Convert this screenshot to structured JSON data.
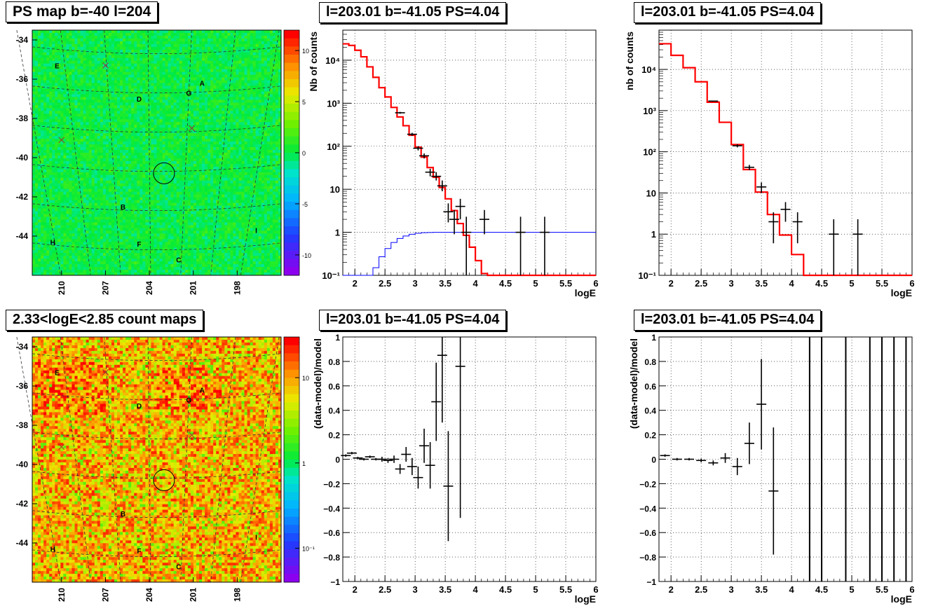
{
  "panels": {
    "map_ps": {
      "title": "PS map b=-40 l=204",
      "y_ticks": [
        "-34",
        "-36",
        "-38",
        "-40",
        "-42",
        "-44"
      ],
      "x_ticks": [
        "210",
        "207",
        "204",
        "201",
        "198"
      ],
      "colorbar_ticks": [
        "10",
        "5",
        "0",
        "-5",
        "-10"
      ],
      "source_labels": [
        {
          "text": "E"
        },
        {
          "text": "A"
        },
        {
          "text": "D"
        },
        {
          "text": "G"
        },
        {
          "text": "B"
        },
        {
          "text": "H"
        },
        {
          "text": "F"
        },
        {
          "text": "C"
        },
        {
          "text": "I"
        }
      ],
      "color_scale": "significance, rainbow, mostly green (~0)"
    },
    "map_counts": {
      "title": "2.33<logE<2.85 count maps",
      "y_ticks": [
        "-34",
        "-36",
        "-38",
        "-40",
        "-42",
        "-44"
      ],
      "x_ticks": [
        "210",
        "207",
        "204",
        "201",
        "198"
      ],
      "colorbar_ticks": [
        "10",
        "1",
        "10⁻¹"
      ],
      "source_labels": [
        {
          "text": "E"
        },
        {
          "text": "A"
        },
        {
          "text": "D"
        },
        {
          "text": "G"
        },
        {
          "text": "B"
        },
        {
          "text": "H"
        },
        {
          "text": "F"
        },
        {
          "text": "C"
        },
        {
          "text": "I"
        }
      ],
      "color_scale": "counts, log, mostly orange/red"
    },
    "spec1": {
      "title": "l=203.01 b=-41.05 PS=4.04",
      "ylabel": "Nb of counts",
      "xlabel": "logE"
    },
    "spec2": {
      "title": "l=203.01 b=-41.05 PS=4.04",
      "ylabel": "nb of counts",
      "xlabel": "logE"
    },
    "res1": {
      "title": "l=203.01 b=-41.05 PS=4.04",
      "ylabel": "(data-model)/model",
      "xlabel": "logE"
    },
    "res2": {
      "title": "l=203.01 b=-41.05 PS=4.04",
      "ylabel": "(data-model)/model",
      "xlabel": "logE"
    }
  },
  "chart_data": [
    {
      "type": "heatmap",
      "title": "PS map b=-40 l=204",
      "xlabel": "",
      "ylabel": "",
      "xlim": [
        212,
        195
      ],
      "ylim": [
        -46,
        -33.5
      ],
      "colorbar": {
        "min": -12,
        "max": 12,
        "scale": "linear"
      },
      "sources": [
        {
          "label": "E",
          "l": 210.3,
          "b": -35.3
        },
        {
          "label": "A",
          "l": 200.4,
          "b": -36.2
        },
        {
          "label": "D",
          "l": 204.7,
          "b": -37.0
        },
        {
          "label": "G",
          "l": 201.3,
          "b": -36.7
        },
        {
          "label": "B",
          "l": 205.8,
          "b": -42.5
        },
        {
          "label": "H",
          "l": 210.6,
          "b": -44.3
        },
        {
          "label": "F",
          "l": 204.7,
          "b": -44.4
        },
        {
          "label": "C",
          "l": 202.0,
          "b": -45.2
        },
        {
          "label": "I",
          "l": 196.7,
          "b": -43.7
        }
      ],
      "crosses": [
        {
          "l": 207.0,
          "b": -35.3
        },
        {
          "l": 201.1,
          "b": -38.5
        },
        {
          "l": 210.0,
          "b": -39.1
        }
      ],
      "circle": {
        "l": 203.0,
        "b": -40.8
      }
    },
    {
      "type": "heatmap",
      "title": "2.33<logE<2.85 count maps",
      "xlabel": "",
      "ylabel": "",
      "xlim": [
        212,
        195
      ],
      "ylim": [
        -46,
        -33.5
      ],
      "colorbar": {
        "min": 0.04,
        "max": 30,
        "scale": "log"
      }
    },
    {
      "type": "line",
      "title": "l=203.01 b=-41.05 PS=4.04",
      "xlabel": "logE",
      "ylabel": "Nb of counts",
      "xlim": [
        1.8,
        6
      ],
      "ylim": [
        0.1,
        50000
      ],
      "yscale": "log",
      "grid": true,
      "series": [
        {
          "style": "step",
          "color": "#ff0000",
          "bins": [
            1.8,
            1.9,
            2.0,
            2.1,
            2.2,
            2.3,
            2.4,
            2.5,
            2.6,
            2.7,
            2.8,
            2.9,
            3.0,
            3.1,
            3.2,
            3.3,
            3.4,
            3.5,
            3.6,
            3.7,
            3.8,
            3.9,
            4.0,
            4.1,
            4.2,
            4.3,
            4.4,
            4.5,
            4.6,
            4.7,
            4.8,
            4.9,
            5.0,
            5.1,
            5.2,
            5.3,
            5.4,
            5.5,
            5.6,
            5.7,
            5.8,
            5.9,
            6.0
          ],
          "values": [
            24000,
            22000,
            17000,
            12000,
            7000,
            4000,
            2300,
            1400,
            800,
            480,
            300,
            180,
            95,
            56,
            32,
            19,
            11,
            6,
            3.2,
            1.6,
            0.85,
            0.45,
            0.22,
            0.11,
            0.06,
            0.06,
            0.06,
            0.06,
            0.06,
            0.06,
            0.06,
            0.06,
            0.06,
            0.06,
            0.06,
            0.06,
            0.06,
            0.06,
            0.06,
            0.06,
            0.06,
            0.06
          ]
        },
        {
          "style": "step",
          "color": "#0000ff",
          "bins": [
            1.8,
            1.9,
            2.0,
            2.1,
            2.2,
            2.3,
            2.4,
            2.5,
            2.6,
            2.7,
            2.8,
            2.9,
            3.0,
            3.1,
            3.2,
            3.3,
            3.4,
            3.5,
            3.6,
            3.7,
            3.8,
            3.9,
            4.0,
            4.1,
            4.2,
            4.3,
            4.4,
            4.5,
            4.6,
            4.7,
            4.8,
            4.9,
            5.0,
            5.1,
            5.2,
            5.3,
            5.4,
            5.5,
            5.6,
            5.7,
            5.8,
            5.9,
            6.0
          ],
          "values": [
            0.01,
            0.01,
            0.01,
            0.05,
            0.09,
            0.15,
            0.27,
            0.42,
            0.58,
            0.72,
            0.82,
            0.9,
            0.95,
            0.98,
            0.99,
            1,
            1,
            1,
            1,
            1,
            1,
            1,
            1,
            1,
            1,
            1,
            1,
            1,
            1,
            1,
            1,
            1,
            1,
            1,
            1,
            1,
            1,
            1,
            1,
            1,
            1,
            1
          ]
        },
        {
          "style": "errorbar",
          "color": "#000000",
          "points": [
            {
              "x": 2.75,
              "y": 600,
              "lo": 570,
              "hi": 630
            },
            {
              "x": 2.95,
              "y": 190,
              "lo": 175,
              "hi": 205
            },
            {
              "x": 3.05,
              "y": 90,
              "lo": 80,
              "hi": 100
            },
            {
              "x": 3.15,
              "y": 60,
              "lo": 52,
              "hi": 68
            },
            {
              "x": 3.25,
              "y": 25,
              "lo": 20,
              "hi": 30
            },
            {
              "x": 3.35,
              "y": 20,
              "lo": 16,
              "hi": 25
            },
            {
              "x": 3.45,
              "y": 12,
              "lo": 9,
              "hi": 16
            },
            {
              "x": 3.55,
              "y": 3,
              "lo": 1.7,
              "hi": 4.7
            },
            {
              "x": 3.65,
              "y": 2,
              "lo": 0.9,
              "hi": 3.3
            },
            {
              "x": 3.75,
              "y": 4,
              "lo": 2,
              "hi": 6
            },
            {
              "x": 3.85,
              "y": 1,
              "lo": 0.1,
              "hi": 2.3
            },
            {
              "x": 4.15,
              "y": 2,
              "lo": 0.9,
              "hi": 3.3
            },
            {
              "x": 4.75,
              "y": 1,
              "lo": 0.1,
              "hi": 2.3
            },
            {
              "x": 5.15,
              "y": 1,
              "lo": 0.1,
              "hi": 2.3
            }
          ]
        }
      ]
    },
    {
      "type": "line",
      "title": "l=203.01 b=-41.05 PS=4.04",
      "xlabel": "logE",
      "ylabel": "nb of counts",
      "xlim": [
        1.8,
        6
      ],
      "ylim": [
        0.1,
        90000
      ],
      "yscale": "log",
      "grid": true,
      "series": [
        {
          "style": "step",
          "color": "#ff0000",
          "bins": [
            1.8,
            2.0,
            2.2,
            2.4,
            2.6,
            2.8,
            3.0,
            3.2,
            3.4,
            3.6,
            3.8,
            4.0,
            4.2,
            4.4,
            4.6,
            4.8,
            5.0,
            5.2,
            5.4,
            5.6,
            5.8,
            6.0
          ],
          "values": [
            42000,
            22000,
            11000,
            5000,
            1600,
            520,
            150,
            37,
            10.5,
            3,
            0.95,
            0.32,
            0.06,
            0.06,
            0.06,
            0.06,
            0.06,
            0.06,
            0.06,
            0.06,
            0.06
          ]
        },
        {
          "style": "errorbar",
          "color": "#000000",
          "points": [
            {
              "x": 2.7,
              "y": 1700,
              "lo": 1660,
              "hi": 1740
            },
            {
              "x": 3.1,
              "y": 140,
              "lo": 128,
              "hi": 152
            },
            {
              "x": 3.3,
              "y": 42,
              "lo": 36,
              "hi": 48
            },
            {
              "x": 3.5,
              "y": 14,
              "lo": 10,
              "hi": 18
            },
            {
              "x": 3.7,
              "y": 2,
              "lo": 0.6,
              "hi": 3.4
            },
            {
              "x": 3.9,
              "y": 4,
              "lo": 2,
              "hi": 6
            },
            {
              "x": 4.1,
              "y": 2,
              "lo": 0.6,
              "hi": 3.4
            },
            {
              "x": 4.7,
              "y": 1,
              "lo": 0.1,
              "hi": 2.3
            },
            {
              "x": 5.1,
              "y": 1,
              "lo": 0.1,
              "hi": 2.3
            }
          ]
        }
      ]
    },
    {
      "type": "scatter",
      "title": "l=203.01 b=-41.05 PS=4.04",
      "xlabel": "logE",
      "ylabel": "(data-model)/model",
      "xlim": [
        1.8,
        6
      ],
      "ylim": [
        -1,
        1
      ],
      "grid": true,
      "points": [
        {
          "x": 1.85,
          "y": 0.03,
          "err": 0.01
        },
        {
          "x": 1.95,
          "y": 0.05,
          "err": 0.01
        },
        {
          "x": 2.05,
          "y": 0.01,
          "err": 0.01
        },
        {
          "x": 2.15,
          "y": 0.0,
          "err": 0.01
        },
        {
          "x": 2.25,
          "y": 0.02,
          "err": 0.01
        },
        {
          "x": 2.35,
          "y": 0.0,
          "err": 0.01
        },
        {
          "x": 2.45,
          "y": 0.0,
          "err": 0.02
        },
        {
          "x": 2.55,
          "y": -0.01,
          "err": 0.02
        },
        {
          "x": 2.65,
          "y": 0.0,
          "err": 0.03
        },
        {
          "x": 2.75,
          "y": -0.08,
          "err": 0.04
        },
        {
          "x": 2.85,
          "y": 0.04,
          "err": 0.06
        },
        {
          "x": 2.95,
          "y": -0.06,
          "err": 0.07
        },
        {
          "x": 3.05,
          "y": -0.15,
          "err": 0.09
        },
        {
          "x": 3.15,
          "y": 0.11,
          "err": 0.14
        },
        {
          "x": 3.25,
          "y": -0.05,
          "err": 0.19
        },
        {
          "x": 3.35,
          "y": 0.47,
          "err": 0.32
        },
        {
          "x": 3.45,
          "y": 0.85,
          "err": 0.55
        },
        {
          "x": 3.55,
          "y": -0.22,
          "err": 0.45
        },
        {
          "x": 3.75,
          "y": 0.76,
          "err": 1.24
        }
      ]
    },
    {
      "type": "scatter",
      "title": "l=203.01 b=-41.05 PS=4.04",
      "xlabel": "logE",
      "ylabel": "(data-model)/model",
      "xlim": [
        1.8,
        6
      ],
      "ylim": [
        -1,
        1
      ],
      "grid": true,
      "points": [
        {
          "x": 1.9,
          "y": 0.03,
          "err": 0.01
        },
        {
          "x": 2.1,
          "y": 0.0,
          "err": 0.01
        },
        {
          "x": 2.3,
          "y": 0.0,
          "err": 0.01
        },
        {
          "x": 2.5,
          "y": -0.01,
          "err": 0.015
        },
        {
          "x": 2.7,
          "y": -0.03,
          "err": 0.02
        },
        {
          "x": 2.9,
          "y": 0.01,
          "err": 0.04
        },
        {
          "x": 3.1,
          "y": -0.06,
          "err": 0.07
        },
        {
          "x": 3.3,
          "y": 0.13,
          "err": 0.17
        },
        {
          "x": 3.5,
          "y": 0.45,
          "err": 0.37
        },
        {
          "x": 3.7,
          "y": -0.26,
          "err": 0.52
        }
      ],
      "vertical_bars_x": [
        4.3,
        4.5,
        4.9,
        5.3,
        5.5,
        5.7,
        5.9
      ]
    }
  ]
}
